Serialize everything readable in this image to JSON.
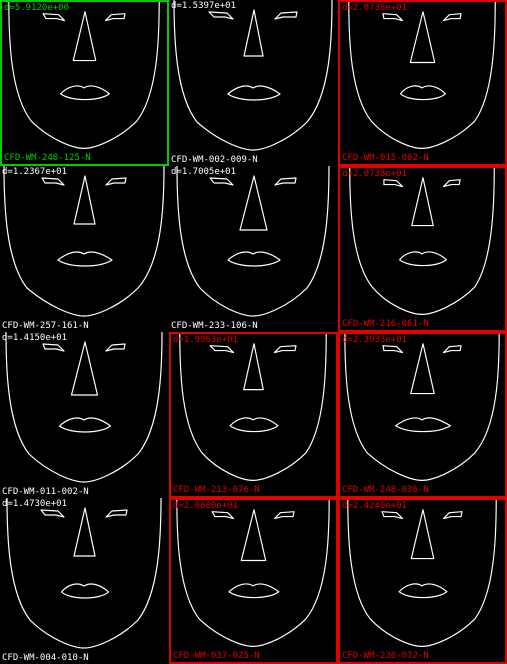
{
  "colors": {
    "background": "#000000",
    "line": "#ffffff",
    "best_match": "#00cc00",
    "flagged": "#e00000"
  },
  "tiles": [
    {
      "distance": "d=5.9120e+00",
      "id": "CFD-WM-240-125-N",
      "status": "best"
    },
    {
      "distance": "d=1.5397e+01",
      "id": "CFD-WM-002-009-N",
      "status": "normal"
    },
    {
      "distance": "d=2.0738e+01",
      "id": "CFD-WM-015-002-N",
      "status": "flagged"
    },
    {
      "distance": "d=1.2367e+01",
      "id": "CFD-WM-257-161-N",
      "status": "normal"
    },
    {
      "distance": "d=1.7005e+01",
      "id": "CFD-WM-233-106-N",
      "status": "normal"
    },
    {
      "distance": "d=2.0738e+01",
      "id": "CFD-WM-216-061-N",
      "status": "flagged"
    },
    {
      "distance": "d=1.4150e+01",
      "id": "CFD-WM-011-002-N",
      "status": "normal"
    },
    {
      "distance": "d=1.9963e+01",
      "id": "CFD-WM-213-076-N",
      "status": "flagged"
    },
    {
      "distance": "d=2.3933e+01",
      "id": "CFD-WM-248-036-N",
      "status": "flagged"
    },
    {
      "distance": "d=1.4730e+01",
      "id": "CFD-WM-004-010-N",
      "status": "normal"
    },
    {
      "distance": "d=2.0600e+01",
      "id": "CFD-WM-037-025-N",
      "status": "flagged"
    },
    {
      "distance": "d=2.4240e+01",
      "id": "CFD-WM-236-072-N",
      "status": "flagged"
    }
  ]
}
